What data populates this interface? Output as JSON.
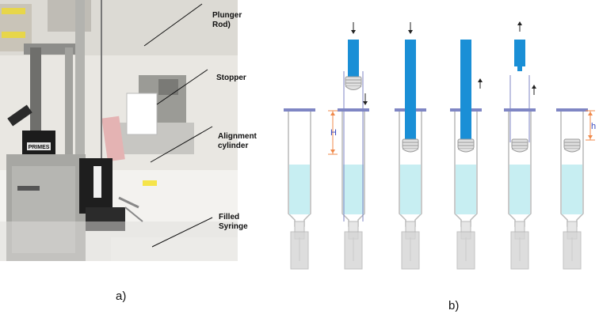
{
  "labels": {
    "plunger_rod": "Plunger\nRod)",
    "stopper": "Stopper",
    "alignment_cylinder": "Alignment\ncylinder",
    "filled_syringe": "Filled\nSyringe"
  },
  "photo_badge": "PRIMES",
  "captions": {
    "a": "a)",
    "b": "b)"
  },
  "dimension_labels": {
    "H": "H",
    "h": "h"
  },
  "colors": {
    "plunger": "#1a8fd6",
    "liquid": "#c7eef2",
    "flange": "#7f86c4",
    "dimension": "#f08a4b",
    "dimension_text": "#3a4bc0",
    "barrel_edge": "#b9b9b9",
    "needle_shield": "#d5d5d5"
  }
}
